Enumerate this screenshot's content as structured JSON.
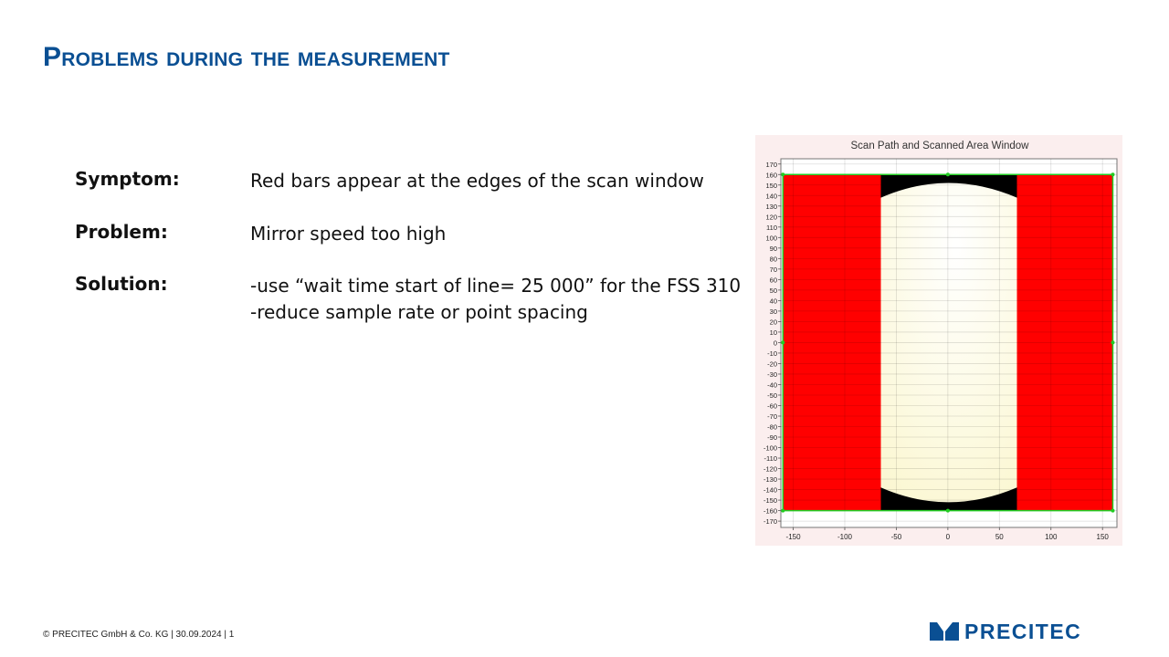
{
  "title": "Problems during the measurement",
  "items": [
    {
      "label": "Symptom:",
      "lines": [
        "Red bars appear at the edges of the scan window"
      ]
    },
    {
      "label": "Problem:",
      "lines": [
        "Mirror speed too high"
      ]
    },
    {
      "label": "Solution:",
      "lines": [
        "-use “wait time start of line= 25 000” for the FSS 310",
        "-reduce sample rate or point spacing"
      ]
    }
  ],
  "scan_window": {
    "title": "Scan Path and Scanned Area Window",
    "y_ticks": [
      "170",
      "160",
      "150",
      "140",
      "130",
      "120",
      "110",
      "100",
      "90",
      "80",
      "70",
      "60",
      "50",
      "40",
      "30",
      "20",
      "10",
      "0",
      "-10",
      "-20",
      "-30",
      "-40",
      "-50",
      "-60",
      "-70",
      "-80",
      "-90",
      "-100",
      "-110",
      "-120",
      "-130",
      "-140",
      "-150",
      "-160",
      "-170"
    ],
    "x_ticks": [
      "-150",
      "-100",
      "-50",
      "0",
      "50",
      "100",
      "150"
    ],
    "colors": {
      "background": "#fbeeee",
      "red_bars": "#ff0000",
      "scanned_area": "#fbf7d2",
      "unscanned": "#000000",
      "boundary": "#22cc22"
    }
  },
  "footer": "© PRECITEC GmbH & Co. KG | 30.09.2024 | 1",
  "logo": {
    "text": "PRECITEC",
    "color": "#0a4f93"
  }
}
